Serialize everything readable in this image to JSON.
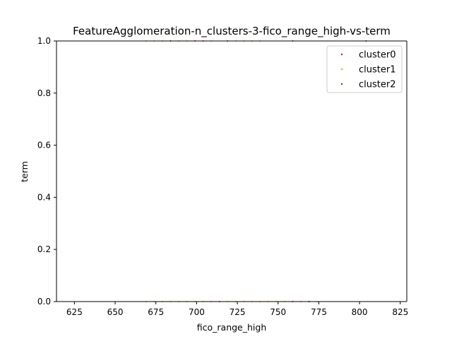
{
  "chart_data": {
    "type": "scatter",
    "title": "FeatureAgglomeration-n_clusters-3-fico_range_high-vs-term",
    "xlabel": "fico_range_high",
    "ylabel": "term",
    "xlim": [
      614,
      829
    ],
    "ylim": [
      0.0,
      1.0
    ],
    "xticks": [
      625,
      650,
      675,
      700,
      725,
      750,
      775,
      800,
      825
    ],
    "xtick_labels": [
      "625",
      "650",
      "675",
      "700",
      "725",
      "750",
      "775",
      "800",
      "825"
    ],
    "yticks": [
      0.0,
      0.2,
      0.4,
      0.6,
      0.8,
      1.0
    ],
    "ytick_labels": [
      "0.0",
      "0.2",
      "0.4",
      "0.6",
      "0.8",
      "1.0"
    ],
    "grid": false,
    "legend_position": "top-right",
    "series": [
      {
        "name": "cluster0",
        "color": "#ff0000",
        "points": [
          [
            699,
            1.0
          ],
          [
            704,
            1.0
          ],
          [
            719,
            1.0
          ],
          [
            759,
            0.0
          ],
          [
            714,
            0.0
          ]
        ]
      },
      {
        "name": "cluster1",
        "color": "#ffa500",
        "points": [
          [
            669,
            1.0
          ],
          [
            674,
            1.0
          ],
          [
            679,
            1.0
          ],
          [
            684,
            1.0
          ],
          [
            689,
            1.0
          ],
          [
            694,
            1.0
          ],
          [
            709,
            1.0
          ],
          [
            724,
            1.0
          ],
          [
            729,
            1.0
          ],
          [
            734,
            1.0
          ],
          [
            739,
            1.0
          ],
          [
            669,
            0.0
          ],
          [
            674,
            0.0
          ],
          [
            679,
            0.0
          ],
          [
            684,
            0.0
          ],
          [
            689,
            0.0
          ],
          [
            694,
            0.0
          ],
          [
            699,
            0.0
          ],
          [
            704,
            0.0
          ],
          [
            709,
            0.0
          ],
          [
            719,
            0.0
          ],
          [
            724,
            0.0
          ],
          [
            729,
            0.0
          ],
          [
            734,
            0.0
          ],
          [
            739,
            0.0
          ],
          [
            744,
            0.0
          ],
          [
            749,
            0.0
          ],
          [
            754,
            0.0
          ],
          [
            764,
            0.0
          ],
          [
            769,
            0.0
          ],
          [
            774,
            0.0
          ]
        ]
      },
      {
        "name": "cluster2",
        "color": "#008000",
        "points": [
          [
            684,
            1.0
          ],
          [
            804,
            1.0
          ],
          [
            759,
            1.0
          ],
          [
            769,
            0.0
          ]
        ]
      }
    ]
  }
}
